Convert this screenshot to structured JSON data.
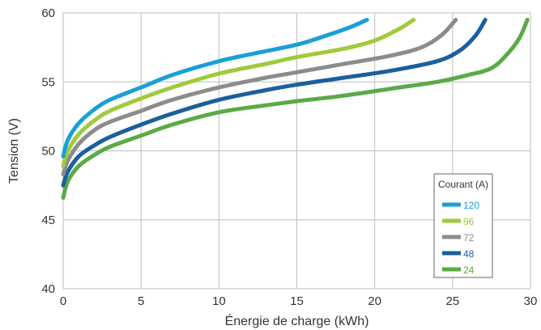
{
  "chart_data": {
    "type": "line",
    "title": "",
    "xlabel": "Énergie de charge (kWh)",
    "ylabel": "Tension (V)",
    "xlim": [
      0,
      30
    ],
    "ylim": [
      40,
      60
    ],
    "xticks": [
      0,
      5,
      10,
      15,
      20,
      25,
      30
    ],
    "yticks": [
      40,
      45,
      50,
      55,
      60
    ],
    "grid": true,
    "legend": {
      "title": "Courant (A)",
      "position": "bottom-right"
    },
    "series": [
      {
        "name": "120",
        "color": "#1a9fd6",
        "points": [
          [
            0,
            49.6
          ],
          [
            0.3,
            50.8
          ],
          [
            1,
            52.0
          ],
          [
            2,
            53.0
          ],
          [
            3,
            53.7
          ],
          [
            5,
            54.6
          ],
          [
            7,
            55.5
          ],
          [
            10,
            56.5
          ],
          [
            12,
            57.0
          ],
          [
            15,
            57.7
          ],
          [
            17,
            58.4
          ],
          [
            18.5,
            59.0
          ],
          [
            19.5,
            59.5
          ]
        ]
      },
      {
        "name": "96",
        "color": "#9ecb3b",
        "points": [
          [
            0,
            48.9
          ],
          [
            0.3,
            50.0
          ],
          [
            1,
            51.2
          ],
          [
            2,
            52.2
          ],
          [
            3,
            52.9
          ],
          [
            5,
            53.8
          ],
          [
            7,
            54.6
          ],
          [
            10,
            55.6
          ],
          [
            13,
            56.3
          ],
          [
            15,
            56.8
          ],
          [
            18,
            57.4
          ],
          [
            20,
            58.0
          ],
          [
            21.5,
            58.8
          ],
          [
            22.5,
            59.5
          ]
        ]
      },
      {
        "name": "72",
        "color": "#8c8c8c",
        "points": [
          [
            0,
            48.3
          ],
          [
            0.3,
            49.3
          ],
          [
            1,
            50.5
          ],
          [
            2,
            51.5
          ],
          [
            3,
            52.1
          ],
          [
            5,
            52.9
          ],
          [
            7,
            53.7
          ],
          [
            10,
            54.6
          ],
          [
            13,
            55.3
          ],
          [
            15,
            55.7
          ],
          [
            18,
            56.3
          ],
          [
            21,
            56.9
          ],
          [
            23,
            57.5
          ],
          [
            24.3,
            58.4
          ],
          [
            25.2,
            59.5
          ]
        ]
      },
      {
        "name": "48",
        "color": "#1c5f9e",
        "points": [
          [
            0,
            47.5
          ],
          [
            0.3,
            48.5
          ],
          [
            1,
            49.6
          ],
          [
            2,
            50.4
          ],
          [
            3,
            51.0
          ],
          [
            5,
            51.9
          ],
          [
            7,
            52.7
          ],
          [
            10,
            53.7
          ],
          [
            13,
            54.4
          ],
          [
            15,
            54.8
          ],
          [
            18,
            55.3
          ],
          [
            21,
            55.8
          ],
          [
            24,
            56.5
          ],
          [
            25.5,
            57.3
          ],
          [
            26.5,
            58.4
          ],
          [
            27.1,
            59.5
          ]
        ]
      },
      {
        "name": "24",
        "color": "#5aaa46",
        "points": [
          [
            0,
            46.6
          ],
          [
            0.3,
            47.8
          ],
          [
            1,
            48.9
          ],
          [
            2,
            49.7
          ],
          [
            3,
            50.3
          ],
          [
            5,
            51.1
          ],
          [
            7,
            51.9
          ],
          [
            10,
            52.8
          ],
          [
            13,
            53.3
          ],
          [
            15,
            53.6
          ],
          [
            18,
            54.0
          ],
          [
            21,
            54.5
          ],
          [
            24,
            55.0
          ],
          [
            26,
            55.5
          ],
          [
            27.5,
            56.0
          ],
          [
            28.5,
            57.0
          ],
          [
            29.3,
            58.2
          ],
          [
            29.8,
            59.5
          ]
        ]
      }
    ]
  }
}
